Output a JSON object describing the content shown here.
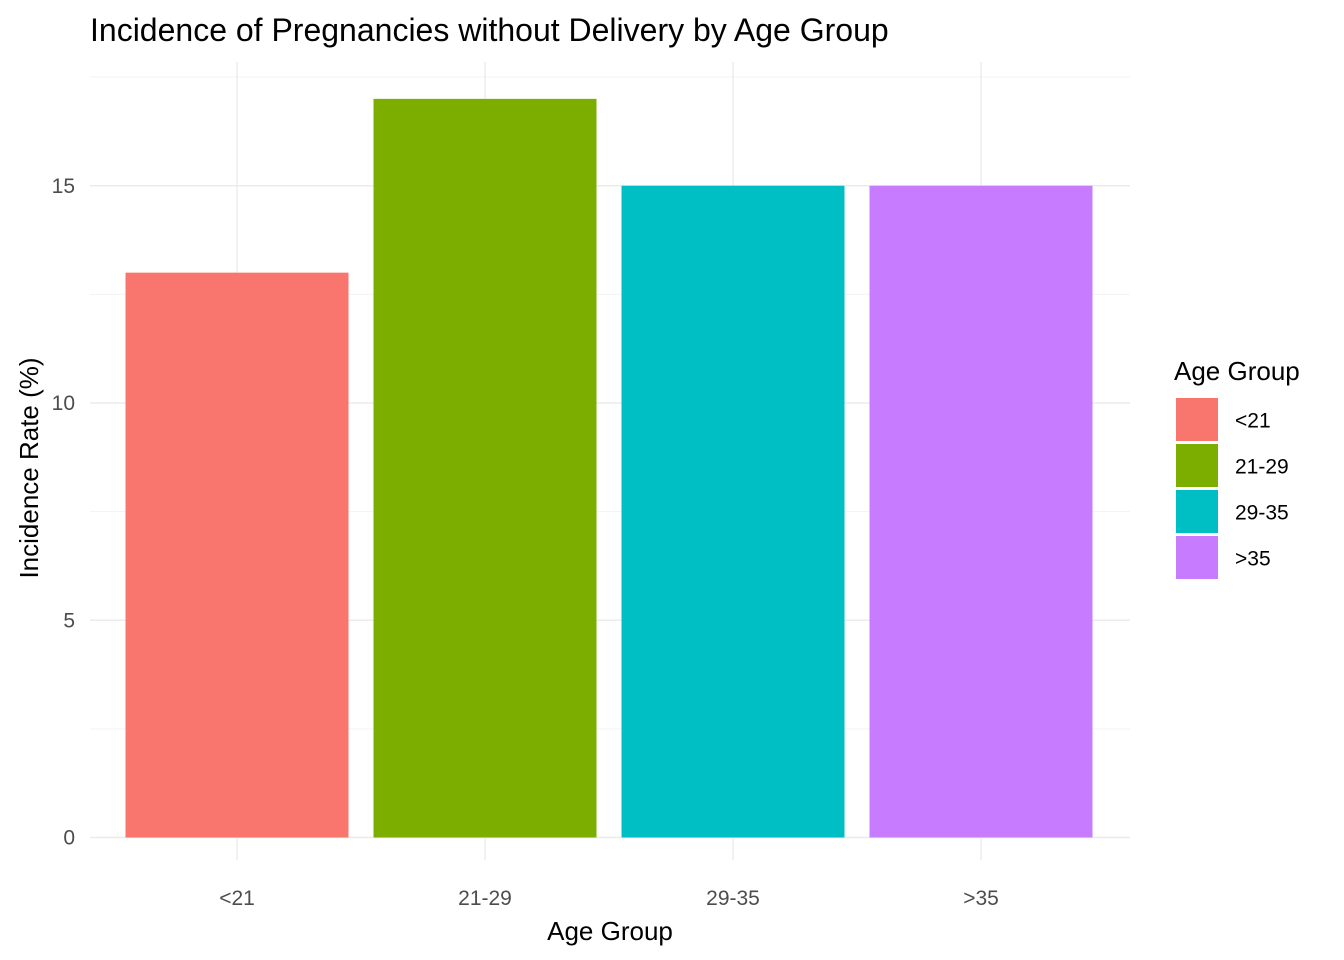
{
  "chart_data": {
    "type": "bar",
    "title": "Incidence of Pregnancies without Delivery by Age Group",
    "xlabel": "Age Group",
    "ylabel": "Incidence Rate (%)",
    "categories": [
      "<21",
      "21-29",
      "29-35",
      ">35"
    ],
    "values": [
      13,
      17,
      15,
      15
    ],
    "colors": [
      "#F8766D",
      "#7CAE00",
      "#00BFC4",
      "#C77CFF"
    ],
    "ylim": [
      0,
      17.85
    ],
    "yticks": [
      0,
      5,
      10,
      15
    ],
    "grid": true,
    "legend": {
      "title": "Age Group",
      "entries": [
        "<21",
        "21-29",
        "29-35",
        ">35"
      ],
      "placement": "right"
    }
  }
}
